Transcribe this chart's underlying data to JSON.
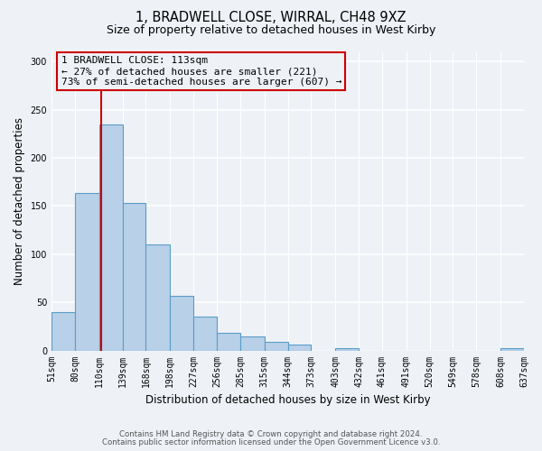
{
  "title": "1, BRADWELL CLOSE, WIRRAL, CH48 9XZ",
  "subtitle": "Size of property relative to detached houses in West Kirby",
  "xlabel": "Distribution of detached houses by size in West Kirby",
  "ylabel": "Number of detached properties",
  "bin_labels": [
    "51sqm",
    "80sqm",
    "110sqm",
    "139sqm",
    "168sqm",
    "198sqm",
    "227sqm",
    "256sqm",
    "285sqm",
    "315sqm",
    "344sqm",
    "373sqm",
    "403sqm",
    "432sqm",
    "461sqm",
    "491sqm",
    "520sqm",
    "549sqm",
    "578sqm",
    "608sqm",
    "637sqm"
  ],
  "bin_edges": [
    51,
    80,
    110,
    139,
    168,
    198,
    227,
    256,
    285,
    315,
    344,
    373,
    403,
    432,
    461,
    491,
    520,
    549,
    578,
    608,
    637
  ],
  "bar_heights": [
    40,
    163,
    235,
    153,
    110,
    57,
    35,
    18,
    15,
    9,
    6,
    0,
    2,
    0,
    0,
    0,
    0,
    0,
    0,
    2
  ],
  "bar_color": "#b8d0e8",
  "bar_edge_color": "#5a9dc8",
  "marker_value": 113,
  "marker_color": "#cc0000",
  "ylim": [
    0,
    310
  ],
  "yticks": [
    0,
    50,
    100,
    150,
    200,
    250,
    300
  ],
  "annotation_title": "1 BRADWELL CLOSE: 113sqm",
  "annotation_line1": "← 27% of detached houses are smaller (221)",
  "annotation_line2": "73% of semi-detached houses are larger (607) →",
  "annotation_box_color": "#cc0000",
  "footer_line1": "Contains HM Land Registry data © Crown copyright and database right 2024.",
  "footer_line2": "Contains public sector information licensed under the Open Government Licence v3.0.",
  "bg_color": "#eef2f7"
}
